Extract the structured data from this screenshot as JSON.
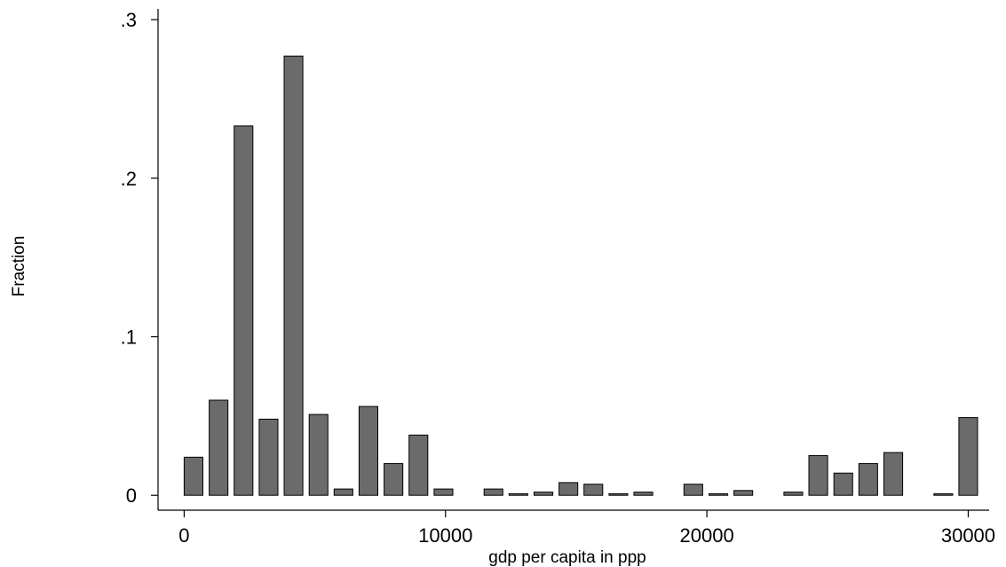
{
  "chart_data": {
    "type": "bar",
    "title": "",
    "xlabel": "gdp per capita in ppp",
    "ylabel": "Fraction",
    "xlim": [
      -1000,
      30800
    ],
    "ylim": [
      -0.0094,
      0.3068
    ],
    "x_ticks": [
      0,
      10000,
      20000,
      30000
    ],
    "x_tick_labels": [
      "0",
      "10000",
      "20000",
      "30000"
    ],
    "y_ticks": [
      0,
      0.1,
      0.2,
      0.3
    ],
    "y_tick_labels": [
      "0",
      ".1",
      ".2",
      ".3"
    ],
    "grid": false,
    "bar_width": 750,
    "bars": [
      {
        "x": 375,
        "value": 0.024
      },
      {
        "x": 1375,
        "value": 0.06
      },
      {
        "x": 2375,
        "value": 0.233
      },
      {
        "x": 3375,
        "value": 0.048
      },
      {
        "x": 4375,
        "value": 0.277
      },
      {
        "x": 5375,
        "value": 0.051
      },
      {
        "x": 6375,
        "value": 0.004
      },
      {
        "x": 7375,
        "value": 0.056
      },
      {
        "x": 8375,
        "value": 0.02
      },
      {
        "x": 9375,
        "value": 0.038
      },
      {
        "x": 10375,
        "value": 0.004
      },
      {
        "x": 12375,
        "value": 0.004
      },
      {
        "x": 13375,
        "value": 0.001
      },
      {
        "x": 14375,
        "value": 0.002
      },
      {
        "x": 15375,
        "value": 0.008
      },
      {
        "x": 16375,
        "value": 0.007
      },
      {
        "x": 17375,
        "value": 0.001
      },
      {
        "x": 18375,
        "value": 0.002
      },
      {
        "x": 20375,
        "value": 0.007
      },
      {
        "x": 21375,
        "value": 0.001
      },
      {
        "x": 22375,
        "value": 0.003
      },
      {
        "x": 24375,
        "value": 0.002
      },
      {
        "x": 25375,
        "value": 0.025
      },
      {
        "x": 26375,
        "value": 0.014
      },
      {
        "x": 27375,
        "value": 0.02
      },
      {
        "x": 28375,
        "value": 0.027
      },
      {
        "x": 30375,
        "value": 0.001
      },
      {
        "x": 31375,
        "value": 0.049
      }
    ]
  }
}
